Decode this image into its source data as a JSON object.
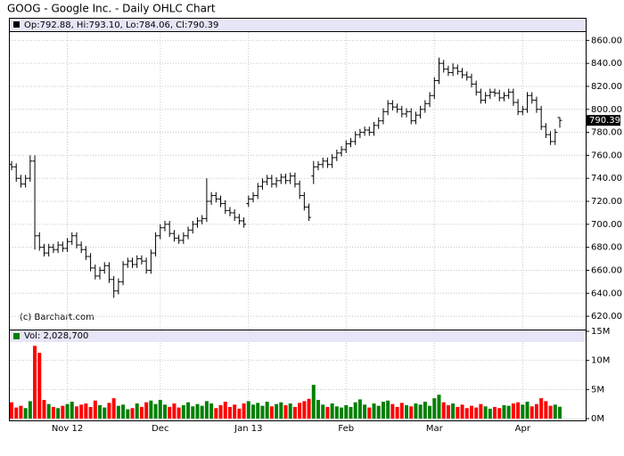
{
  "chart_data": [
    {
      "type": "ohlc",
      "title": "GOOG - Google Inc. - Daily OHLC Chart",
      "legend": "Op:792.88, Hi:793.10, Lo:784.06, Cl:790.39",
      "annotation": "(c) Barchart.com",
      "color": "#000000",
      "grid": true,
      "categories": [
        null,
        null,
        null,
        null,
        null,
        null,
        null,
        null,
        null,
        null,
        null,
        null,
        "Nov 12",
        null,
        null,
        null,
        null,
        null,
        null,
        null,
        null,
        null,
        null,
        null,
        null,
        null,
        null,
        null,
        null,
        null,
        null,
        null,
        "Dec",
        null,
        null,
        null,
        null,
        null,
        null,
        null,
        null,
        null,
        null,
        null,
        null,
        null,
        null,
        null,
        null,
        null,
        null,
        "Jan 13",
        null,
        null,
        null,
        null,
        null,
        null,
        null,
        null,
        null,
        null,
        null,
        null,
        null,
        null,
        null,
        null,
        null,
        null,
        null,
        null,
        "Feb",
        null,
        null,
        null,
        null,
        null,
        null,
        null,
        null,
        null,
        null,
        null,
        null,
        null,
        null,
        null,
        null,
        null,
        null,
        "Mar",
        null,
        null,
        null,
        null,
        null,
        null,
        null,
        null,
        null,
        null,
        null,
        null,
        null,
        null,
        null,
        null,
        null,
        null,
        "Apr",
        null,
        null,
        null,
        null,
        null,
        null,
        null,
        null
      ],
      "open": [
        752,
        750,
        740,
        735,
        740,
        755,
        690,
        680,
        675,
        680,
        678,
        682,
        679,
        685,
        690,
        682,
        678,
        672,
        662,
        655,
        660,
        664,
        652,
        642,
        650,
        665,
        668,
        665,
        670,
        668,
        660,
        675,
        690,
        697,
        700,
        692,
        688,
        686,
        690,
        695,
        700,
        703,
        705,
        720,
        725,
        722,
        718,
        712,
        710,
        706,
        703,
        718,
        722,
        725,
        733,
        737,
        740,
        735,
        738,
        741,
        738,
        742,
        735,
        725,
        715,
        742,
        750,
        752,
        755,
        752,
        758,
        762,
        765,
        770,
        772,
        778,
        780,
        782,
        780,
        786,
        790,
        798,
        805,
        802,
        800,
        796,
        798,
        790,
        795,
        800,
        805,
        812,
        825,
        840,
        835,
        832,
        836,
        833,
        830,
        828,
        822,
        815,
        808,
        812,
        815,
        814,
        810,
        812,
        815,
        806,
        798,
        800,
        812,
        808,
        800,
        785,
        778,
        772,
        792.88
      ],
      "high": [
        755,
        753,
        743,
        743,
        760,
        760,
        693,
        683,
        683,
        683,
        685,
        685,
        688,
        693,
        693,
        685,
        681,
        675,
        665,
        663,
        667,
        667,
        655,
        653,
        668,
        671,
        671,
        673,
        673,
        671,
        678,
        693,
        700,
        703,
        703,
        695,
        691,
        693,
        698,
        703,
        706,
        708,
        740,
        728,
        728,
        725,
        721,
        715,
        713,
        709,
        706,
        725,
        728,
        736,
        740,
        743,
        743,
        741,
        744,
        744,
        745,
        745,
        738,
        728,
        718,
        755,
        755,
        758,
        758,
        761,
        765,
        768,
        773,
        775,
        781,
        783,
        785,
        785,
        789,
        793,
        801,
        808,
        808,
        805,
        803,
        801,
        801,
        798,
        803,
        808,
        815,
        828,
        845,
        843,
        838,
        840,
        839,
        836,
        833,
        831,
        825,
        818,
        815,
        818,
        818,
        817,
        815,
        818,
        818,
        809,
        803,
        815,
        815,
        811,
        803,
        788,
        781,
        783,
        793.1
      ],
      "low": [
        747,
        737,
        732,
        732,
        737,
        678,
        677,
        672,
        672,
        675,
        675,
        676,
        676,
        682,
        679,
        675,
        669,
        659,
        652,
        652,
        657,
        649,
        636,
        639,
        647,
        662,
        662,
        662,
        665,
        657,
        657,
        672,
        687,
        694,
        689,
        685,
        683,
        683,
        687,
        692,
        697,
        700,
        702,
        717,
        719,
        715,
        709,
        707,
        703,
        700,
        697,
        715,
        719,
        722,
        730,
        734,
        732,
        732,
        735,
        735,
        735,
        732,
        722,
        712,
        703,
        735,
        747,
        749,
        749,
        749,
        755,
        759,
        762,
        767,
        769,
        775,
        777,
        777,
        777,
        783,
        787,
        795,
        799,
        797,
        793,
        793,
        787,
        787,
        792,
        797,
        802,
        809,
        822,
        832,
        829,
        829,
        830,
        827,
        825,
        819,
        812,
        805,
        805,
        809,
        811,
        807,
        807,
        809,
        803,
        795,
        795,
        797,
        805,
        797,
        782,
        775,
        769,
        769,
        784.06
      ],
      "close": [
        750,
        740,
        735,
        740,
        755,
        690,
        680,
        675,
        680,
        678,
        682,
        679,
        685,
        690,
        682,
        678,
        672,
        662,
        655,
        660,
        664,
        652,
        642,
        650,
        665,
        668,
        665,
        670,
        668,
        660,
        675,
        690,
        697,
        700,
        692,
        688,
        686,
        690,
        695,
        700,
        703,
        705,
        720,
        725,
        722,
        718,
        712,
        710,
        706,
        703,
        700,
        722,
        725,
        733,
        737,
        740,
        735,
        738,
        741,
        738,
        742,
        735,
        725,
        715,
        706,
        750,
        752,
        755,
        752,
        758,
        762,
        765,
        770,
        772,
        778,
        780,
        782,
        780,
        786,
        790,
        798,
        805,
        802,
        800,
        796,
        798,
        790,
        795,
        800,
        805,
        812,
        825,
        840,
        835,
        832,
        836,
        833,
        830,
        828,
        822,
        815,
        808,
        812,
        815,
        814,
        810,
        812,
        815,
        806,
        798,
        800,
        812,
        808,
        800,
        785,
        778,
        772,
        780,
        790.39
      ],
      "ylim": [
        610,
        868
      ],
      "yticks": [
        {
          "value": 620,
          "label": "620.00"
        },
        {
          "value": 640,
          "label": "640.00"
        },
        {
          "value": 660,
          "label": "660.00"
        },
        {
          "value": 680,
          "label": "680.00"
        },
        {
          "value": 700,
          "label": "700.00"
        },
        {
          "value": 720,
          "label": "720.00"
        },
        {
          "value": 740,
          "label": "740.00"
        },
        {
          "value": 760,
          "label": "760.00"
        },
        {
          "value": 780,
          "label": "780.00"
        },
        {
          "value": 800,
          "label": "800.00"
        },
        {
          "value": 820,
          "label": "820.00"
        },
        {
          "value": 840,
          "label": "840.00"
        },
        {
          "value": 860,
          "label": "860.00"
        }
      ]
    },
    {
      "type": "bar",
      "legend": "Vol: 2,028,700",
      "up_color": "#008000",
      "down_color": "#ff0000",
      "grid": true,
      "values": [
        2.8,
        1.9,
        2.2,
        1.8,
        3.0,
        12.5,
        11.3,
        3.2,
        2.5,
        2.0,
        1.8,
        2.2,
        2.5,
        2.9,
        2.1,
        2.4,
        2.6,
        2.0,
        3.1,
        2.3,
        1.9,
        2.7,
        3.5,
        2.2,
        2.4,
        1.6,
        1.8,
        2.6,
        2.0,
        2.8,
        3.1,
        2.5,
        3.2,
        2.4,
        2.0,
        2.6,
        1.9,
        2.3,
        2.8,
        2.1,
        2.5,
        2.2,
        3.0,
        2.6,
        1.8,
        2.3,
        2.9,
        2.0,
        2.4,
        1.7,
        2.6,
        3.0,
        2.4,
        2.7,
        2.2,
        2.9,
        2.1,
        2.5,
        2.8,
        2.3,
        2.6,
        2.0,
        2.7,
        3.0,
        3.4,
        5.8,
        3.2,
        2.4,
        2.0,
        2.6,
        2.1,
        1.9,
        2.3,
        2.0,
        2.8,
        3.3,
        2.4,
        1.9,
        2.6,
        2.2,
        2.9,
        3.1,
        2.5,
        2.0,
        2.7,
        2.3,
        2.1,
        2.6,
        2.4,
        2.9,
        2.2,
        3.5,
        4.1,
        2.8,
        2.3,
        2.6,
        2.0,
        2.4,
        1.8,
        2.2,
        1.9,
        2.5,
        2.1,
        1.7,
        2.0,
        1.8,
        2.3,
        2.2,
        2.6,
        2.8,
        2.4,
        2.9,
        2.1,
        2.5,
        3.5,
        3.0,
        2.2,
        2.4,
        2.0287
      ],
      "ylim": [
        0,
        15
      ],
      "yticks": [
        {
          "value": 0,
          "label": "0M"
        },
        {
          "value": 5,
          "label": "5M"
        },
        {
          "value": 10,
          "label": "10M"
        },
        {
          "value": 15,
          "label": "15M"
        }
      ]
    }
  ]
}
